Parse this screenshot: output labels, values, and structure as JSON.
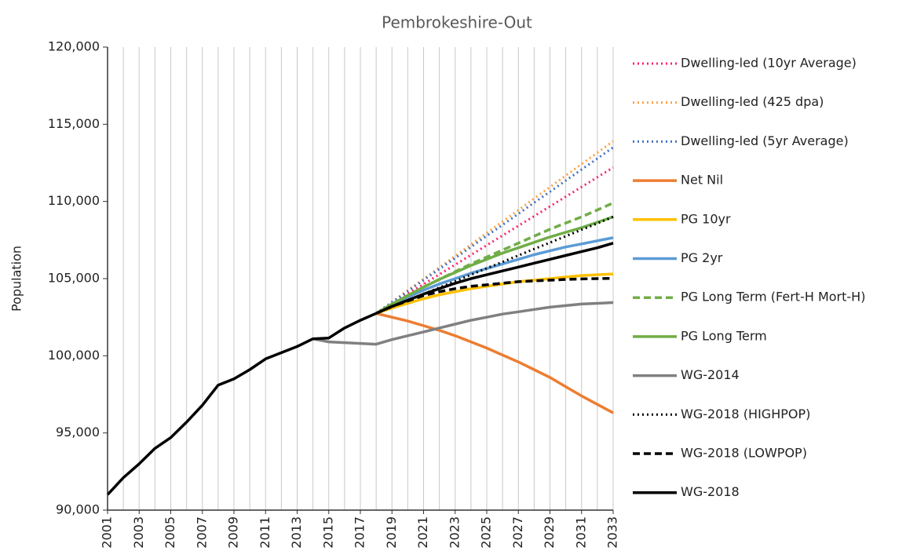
{
  "chart_data": {
    "type": "line",
    "title": "Pembrokeshire-Out",
    "y_label": "Population",
    "x": [
      2001,
      2002,
      2003,
      2004,
      2005,
      2006,
      2007,
      2008,
      2009,
      2010,
      2011,
      2012,
      2013,
      2014,
      2015,
      2016,
      2017,
      2018,
      2019,
      2020,
      2021,
      2022,
      2023,
      2024,
      2025,
      2026,
      2027,
      2028,
      2029,
      2030,
      2031,
      2032,
      2033
    ],
    "xlim": [
      2001,
      2033
    ],
    "xticks": [
      2001,
      2003,
      2005,
      2007,
      2009,
      2011,
      2013,
      2015,
      2017,
      2019,
      2021,
      2023,
      2025,
      2027,
      2029,
      2031,
      2033
    ],
    "ylim": [
      90000,
      120000
    ],
    "yticks": [
      {
        "value": 90000,
        "label": "90,000"
      },
      {
        "value": 95000,
        "label": "95,000"
      },
      {
        "value": 100000,
        "label": "100,000"
      },
      {
        "value": 105000,
        "label": "105,000"
      },
      {
        "value": 110000,
        "label": "110,000"
      },
      {
        "value": 115000,
        "label": "115,000"
      },
      {
        "value": 120000,
        "label": "120,000"
      }
    ],
    "grid": "x",
    "legend": "right",
    "series": [
      {
        "name": "Dwelling-led (10yr Average)",
        "color": "#ff1f6e",
        "style": "dotted",
        "values": [
          null,
          null,
          null,
          null,
          null,
          null,
          null,
          null,
          null,
          null,
          null,
          null,
          null,
          null,
          null,
          null,
          null,
          102750,
          103380,
          104010,
          104640,
          105270,
          105900,
          106530,
          107160,
          107790,
          108420,
          109050,
          109680,
          110310,
          110940,
          111570,
          112200
        ]
      },
      {
        "name": "Dwelling-led (425 dpa)",
        "color": "#ffa040",
        "style": "dotted",
        "values": [
          null,
          null,
          null,
          null,
          null,
          null,
          null,
          null,
          null,
          null,
          null,
          null,
          null,
          null,
          null,
          null,
          null,
          102750,
          103490,
          104240,
          104980,
          105720,
          106470,
          107210,
          107960,
          108700,
          109440,
          110190,
          110930,
          111670,
          112420,
          113160,
          113900
        ]
      },
      {
        "name": "Dwelling-led (5yr Average)",
        "color": "#4472c4",
        "style": "dotted",
        "values": [
          null,
          null,
          null,
          null,
          null,
          null,
          null,
          null,
          null,
          null,
          null,
          null,
          null,
          null,
          null,
          null,
          null,
          102750,
          103470,
          104180,
          104900,
          105620,
          106330,
          107050,
          107770,
          108480,
          109200,
          109920,
          110630,
          111350,
          112070,
          112780,
          113500
        ]
      },
      {
        "name": "Net Nil",
        "color": "#ed7d31",
        "style": "solid",
        "values": [
          null,
          null,
          null,
          null,
          null,
          null,
          null,
          null,
          null,
          null,
          null,
          null,
          null,
          null,
          null,
          null,
          null,
          102750,
          102500,
          102250,
          101950,
          101650,
          101300,
          100900,
          100500,
          100050,
          99600,
          99100,
          98600,
          98000,
          97400,
          96850,
          96300
        ]
      },
      {
        "name": "PG 10yr",
        "color": "#ffc000",
        "style": "solid",
        "values": [
          null,
          null,
          null,
          null,
          null,
          null,
          null,
          null,
          null,
          null,
          null,
          null,
          null,
          null,
          null,
          null,
          null,
          102750,
          103100,
          103400,
          103700,
          103950,
          104150,
          104350,
          104500,
          104650,
          104800,
          104900,
          105000,
          105100,
          105200,
          105250,
          105300
        ]
      },
      {
        "name": "PG 2yr",
        "color": "#5b9bd5",
        "style": "solid",
        "values": [
          null,
          null,
          null,
          null,
          null,
          null,
          null,
          null,
          null,
          null,
          null,
          null,
          null,
          null,
          null,
          null,
          null,
          102750,
          103300,
          103800,
          104250,
          104650,
          105000,
          105350,
          105650,
          105950,
          106250,
          106550,
          106800,
          107050,
          107250,
          107450,
          107650
        ]
      },
      {
        "name": "PG Long Term (Fert-H Mort-H)",
        "color": "#70ad47",
        "style": "dashed",
        "values": [
          null,
          null,
          null,
          null,
          null,
          null,
          null,
          null,
          null,
          null,
          null,
          null,
          null,
          null,
          null,
          null,
          null,
          102750,
          103350,
          103900,
          104450,
          104950,
          105450,
          105950,
          106400,
          106850,
          107300,
          107750,
          108200,
          108600,
          109000,
          109450,
          109900
        ]
      },
      {
        "name": "PG Long Term",
        "color": "#70ad47",
        "style": "solid",
        "values": [
          null,
          null,
          null,
          null,
          null,
          null,
          null,
          null,
          null,
          null,
          null,
          null,
          null,
          null,
          null,
          null,
          null,
          102750,
          103350,
          103900,
          104450,
          104950,
          105400,
          105850,
          106250,
          106650,
          107000,
          107350,
          107700,
          108000,
          108300,
          108650,
          109000
        ]
      },
      {
        "name": "WG-2014",
        "color": "#808080",
        "style": "solid",
        "values": [
          null,
          null,
          null,
          null,
          null,
          null,
          null,
          null,
          null,
          null,
          null,
          null,
          null,
          101100,
          100900,
          100850,
          100800,
          100750,
          101050,
          101300,
          101550,
          101800,
          102050,
          102300,
          102500,
          102700,
          102850,
          103000,
          103150,
          103250,
          103350,
          103400,
          103450
        ]
      },
      {
        "name": "WG-2018 (HIGHPOP)",
        "color": "#000000",
        "style": "dotted",
        "values": [
          null,
          null,
          null,
          null,
          null,
          null,
          null,
          null,
          null,
          null,
          null,
          null,
          null,
          null,
          null,
          null,
          null,
          102750,
          103170,
          103580,
          104000,
          104420,
          104830,
          105250,
          105670,
          106080,
          106500,
          106920,
          107330,
          107750,
          108170,
          108580,
          109000
        ]
      },
      {
        "name": "WG-2018 (LOWPOP)",
        "color": "#000000",
        "style": "dashed",
        "values": [
          null,
          null,
          null,
          null,
          null,
          null,
          null,
          null,
          null,
          null,
          null,
          null,
          null,
          null,
          null,
          null,
          null,
          102750,
          103200,
          103550,
          103900,
          104150,
          104350,
          104500,
          104600,
          104700,
          104800,
          104850,
          104900,
          104950,
          104980,
          105000,
          105020
        ]
      },
      {
        "name": "WG-2018",
        "color": "#000000",
        "style": "solid",
        "values": [
          91000,
          92100,
          93000,
          94000,
          94700,
          95700,
          96800,
          98100,
          98500,
          99100,
          99800,
          100200,
          100600,
          101100,
          101150,
          101800,
          102300,
          102750,
          103200,
          103600,
          104000,
          104350,
          104700,
          105000,
          105250,
          105500,
          105750,
          106000,
          106250,
          106500,
          106750,
          107000,
          107300
        ]
      }
    ]
  }
}
